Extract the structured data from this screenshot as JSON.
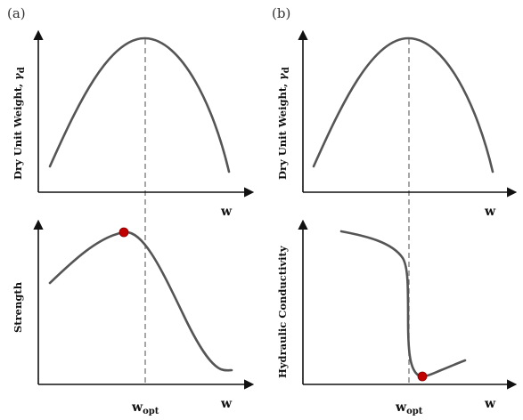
{
  "panels": {
    "a": {
      "label": "(a)"
    },
    "b": {
      "label": "(b)"
    }
  },
  "labels": {
    "dry_unit_weight_text": "Dry Unit Weight, ",
    "dry_unit_weight_symbol": "γ",
    "dry_unit_weight_sub": "d",
    "strength": "Strength",
    "hydraulic_conductivity": "Hydraulic Conductivity",
    "x_axis": "w",
    "w_opt_main": "w",
    "w_opt_sub": "opt"
  },
  "colors": {
    "curve": "#555555",
    "axis": "#111111",
    "guide": "#777777",
    "marker": "#c00000"
  }
}
